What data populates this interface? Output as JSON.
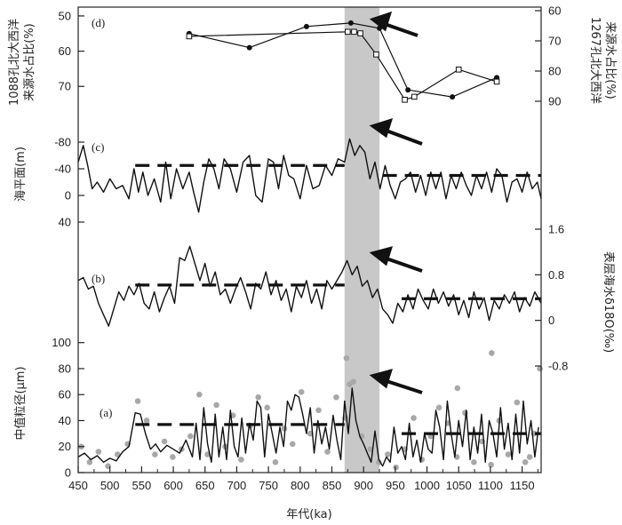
{
  "chart_data": {
    "type": "line",
    "x_axis": {
      "label": "年代(ka)",
      "lim": [
        450,
        1180
      ],
      "ticks": [
        "450",
        "500",
        "550",
        "600",
        "650",
        "700",
        "750",
        "800",
        "850",
        "900",
        "950",
        "1000",
        "1050",
        "1100",
        "1150"
      ]
    },
    "highlight_band": {
      "from": 870,
      "to": 925,
      "color": "#c8c8c8"
    },
    "panels": {
      "d": {
        "tag": "(d)",
        "ylabel_left": "1088孔北大西洋\n来源水占比(%)",
        "ylabel_right": "1267孔北大西洋\n来源水占比(%)",
        "left_ticks": [
          "50",
          "60",
          "70"
        ],
        "left_lim": [
          48,
          77
        ],
        "right_ticks": [
          "60",
          "70",
          "80",
          "90"
        ],
        "right_lim": [
          60,
          90
        ],
        "series": [
          {
            "axis": "left",
            "marker": "circle",
            "x": [
              625,
              720,
              810,
              880,
              925,
              970,
              1040,
              1110
            ],
            "y": [
              55,
              59,
              53,
              52,
              53.5,
              71,
              73,
              67.5
            ]
          },
          {
            "axis": "right",
            "marker": "square",
            "x": [
              625,
              875,
              885,
              895,
              920,
              965,
              980,
              1050,
              1110
            ],
            "y": [
              68.5,
              67,
              67,
              67.5,
              74.5,
              89.5,
              88.5,
              79.5,
              83.5
            ]
          }
        ]
      },
      "c": {
        "tag": "(c)",
        "ylabel": "海平面(m)",
        "ticks": [
          "-80",
          "-40",
          "0",
          "40"
        ],
        "lim": [
          -80,
          40
        ],
        "dashed": [
          {
            "from": 540,
            "to": 870,
            "y": -45
          },
          {
            "from": 930,
            "to": 1180,
            "y": -30
          }
        ],
        "x": [
          450,
          458,
          465,
          472,
          480,
          490,
          500,
          510,
          520,
          530,
          538,
          545,
          552,
          560,
          570,
          580,
          588,
          596,
          605,
          615,
          625,
          632,
          640,
          648,
          656,
          664,
          672,
          680,
          690,
          700,
          710,
          720,
          730,
          740,
          750,
          758,
          766,
          774,
          782,
          790,
          800,
          810,
          820,
          830,
          840,
          850,
          860,
          870,
          878,
          886,
          894,
          902,
          910,
          918,
          926,
          934,
          942,
          950,
          958,
          966,
          974,
          982,
          990,
          998,
          1006,
          1014,
          1022,
          1030,
          1038,
          1046,
          1054,
          1062,
          1070,
          1078,
          1086,
          1094,
          1102,
          1110,
          1118,
          1126,
          1134,
          1142,
          1150,
          1158,
          1166,
          1174,
          1180
        ],
        "y": [
          -50,
          -75,
          -45,
          -10,
          -20,
          -5,
          -25,
          -10,
          -15,
          5,
          -40,
          -5,
          -35,
          0,
          -25,
          10,
          -50,
          5,
          -40,
          -10,
          -35,
          -5,
          25,
          -20,
          -55,
          -40,
          -10,
          -55,
          -40,
          -5,
          -50,
          -60,
          0,
          10,
          -55,
          -50,
          -10,
          -60,
          -30,
          -25,
          5,
          -45,
          -10,
          -15,
          -45,
          -30,
          -55,
          -50,
          -85,
          -60,
          -75,
          -65,
          -25,
          -50,
          -10,
          -45,
          -15,
          5,
          -20,
          -25,
          -35,
          -5,
          -30,
          0,
          -35,
          -10,
          -35,
          5,
          -30,
          -10,
          -35,
          -15,
          0,
          -30,
          -10,
          -35,
          -5,
          -40,
          -30,
          10,
          -20,
          -25,
          -5,
          -35,
          -10,
          -20,
          5
        ]
      },
      "b": {
        "tag": "(b)",
        "ylabel": "表层海水δ18O(‰)",
        "ticks": [
          "1.6",
          "0.8",
          "0",
          "-0.8"
        ],
        "lim": [
          -0.8,
          1.6
        ],
        "dashed": [
          {
            "from": 540,
            "to": 870,
            "y": 0.62
          },
          {
            "from": 960,
            "to": 1180,
            "y": 0.38
          }
        ],
        "x": [
          450,
          458,
          466,
          474,
          482,
          490,
          498,
          506,
          514,
          522,
          530,
          538,
          546,
          554,
          562,
          570,
          578,
          586,
          594,
          602,
          610,
          618,
          626,
          634,
          642,
          650,
          658,
          666,
          674,
          682,
          690,
          698,
          706,
          714,
          722,
          730,
          738,
          746,
          754,
          762,
          770,
          778,
          786,
          794,
          802,
          810,
          818,
          826,
          834,
          842,
          850,
          858,
          866,
          874,
          882,
          890,
          898,
          906,
          914,
          922,
          930,
          938,
          946,
          954,
          962,
          970,
          978,
          986,
          994,
          1002,
          1010,
          1018,
          1026,
          1034,
          1042,
          1050,
          1058,
          1066,
          1074,
          1082,
          1090,
          1098,
          1106,
          1114,
          1122,
          1130,
          1138,
          1146,
          1154,
          1162,
          1170,
          1180
        ],
        "y": [
          0.7,
          0.75,
          0.55,
          0.6,
          0.3,
          0.1,
          -0.1,
          0.2,
          0.5,
          0.35,
          0.6,
          0.45,
          0.65,
          0.3,
          0.2,
          0.5,
          0.15,
          0.4,
          0.6,
          0.3,
          1.1,
          1.05,
          1.3,
          1.0,
          0.7,
          1.0,
          0.6,
          0.85,
          0.45,
          0.55,
          0.3,
          0.55,
          0.75,
          0.5,
          0.2,
          0.65,
          0.55,
          0.85,
          0.45,
          0.7,
          0.35,
          0.55,
          0.15,
          0.6,
          0.4,
          0.7,
          0.3,
          0.55,
          0.2,
          0.7,
          0.55,
          0.7,
          0.85,
          1.05,
          0.8,
          0.95,
          0.6,
          0.7,
          0.4,
          0.55,
          0.2,
          0.1,
          -0.05,
          0.3,
          0.15,
          0.45,
          0.2,
          0.55,
          0.35,
          0.2,
          0.55,
          0.3,
          0.5,
          0.25,
          0.45,
          0.1,
          0.35,
          0.05,
          0.5,
          0.2,
          0.4,
          0.0,
          0.35,
          0.2,
          0.45,
          0.3,
          0.5,
          0.15,
          0.4,
          0.25,
          0.5,
          0.3
        ]
      },
      "a": {
        "tag": "(a)",
        "ylabel": "中值粒径(μm)",
        "ticks": [
          "0",
          "20",
          "40",
          "60",
          "80",
          "100"
        ],
        "lim": [
          0,
          108
        ],
        "dashed": [
          {
            "from": 540,
            "to": 870,
            "y": 37
          },
          {
            "from": 960,
            "to": 1180,
            "y": 30
          }
        ],
        "line_x": [
          450,
          460,
          470,
          480,
          490,
          500,
          510,
          520,
          530,
          540,
          548,
          556,
          564,
          572,
          580,
          590,
          600,
          610,
          620,
          630,
          636,
          642,
          648,
          654,
          660,
          666,
          672,
          678,
          684,
          690,
          696,
          702,
          708,
          714,
          720,
          726,
          732,
          738,
          744,
          750,
          756,
          762,
          768,
          774,
          780,
          786,
          792,
          798,
          804,
          810,
          816,
          822,
          828,
          834,
          840,
          846,
          852,
          858,
          864,
          870,
          876,
          882,
          888,
          894,
          900,
          906,
          912,
          918,
          924,
          930,
          936,
          942,
          948,
          954,
          960,
          966,
          972,
          978,
          984,
          990,
          996,
          1002,
          1008,
          1014,
          1020,
          1026,
          1032,
          1038,
          1044,
          1050,
          1056,
          1062,
          1068,
          1074,
          1080,
          1086,
          1092,
          1098,
          1104,
          1110,
          1116,
          1122,
          1128,
          1134,
          1140,
          1146,
          1152,
          1158,
          1164,
          1170,
          1176
        ],
        "line_y": [
          12,
          15,
          10,
          13,
          8,
          11,
          9,
          16,
          20,
          46,
          45,
          30,
          18,
          22,
          16,
          21,
          18,
          15,
          25,
          12,
          38,
          10,
          50,
          22,
          8,
          45,
          12,
          35,
          10,
          48,
          20,
          12,
          42,
          15,
          38,
          25,
          55,
          50,
          12,
          45,
          30,
          15,
          35,
          20,
          55,
          48,
          60,
          58,
          45,
          30,
          50,
          15,
          40,
          22,
          35,
          18,
          44,
          25,
          10,
          55,
          30,
          65,
          40,
          28,
          22,
          15,
          8,
          32,
          10,
          5,
          12,
          8,
          35,
          15,
          20,
          10,
          38,
          12,
          25,
          8,
          30,
          18,
          15,
          48,
          35,
          10,
          55,
          30,
          12,
          40,
          20,
          48,
          10,
          35,
          15,
          45,
          8,
          40,
          30,
          12,
          50,
          18,
          38,
          10,
          45,
          15,
          55,
          22,
          40,
          12,
          35
        ],
        "scatter_x": [
          455,
          468,
          482,
          497,
          512,
          528,
          544,
          558,
          571,
          586,
          599,
          613,
          627,
          641,
          654,
          668,
          682,
          694,
          707,
          721,
          734,
          748,
          761,
          775,
          788,
          802,
          816,
          829,
          843,
          857,
          871,
          884,
          897,
          911,
          924,
          938,
          951,
          965,
          979,
          992,
          1006,
          1019,
          1033,
          1047,
          1060,
          1074,
          1087,
          1101,
          1114,
          1128,
          1142,
          1155,
          1169,
          1178,
          873,
          878,
          1048,
          1102,
          1162
        ],
        "scatter_y": [
          20,
          8,
          16,
          5,
          14,
          22,
          55,
          40,
          14,
          24,
          12,
          18,
          28,
          60,
          14,
          52,
          20,
          44,
          10,
          36,
          58,
          50,
          8,
          34,
          22,
          62,
          30,
          48,
          16,
          58,
          42,
          70,
          28,
          18,
          8,
          14,
          4,
          18,
          42,
          10,
          28,
          50,
          38,
          12,
          46,
          8,
          24,
          6,
          40,
          14,
          54,
          8,
          30,
          80,
          88,
          68,
          65,
          92,
          12
        ]
      }
    }
  }
}
